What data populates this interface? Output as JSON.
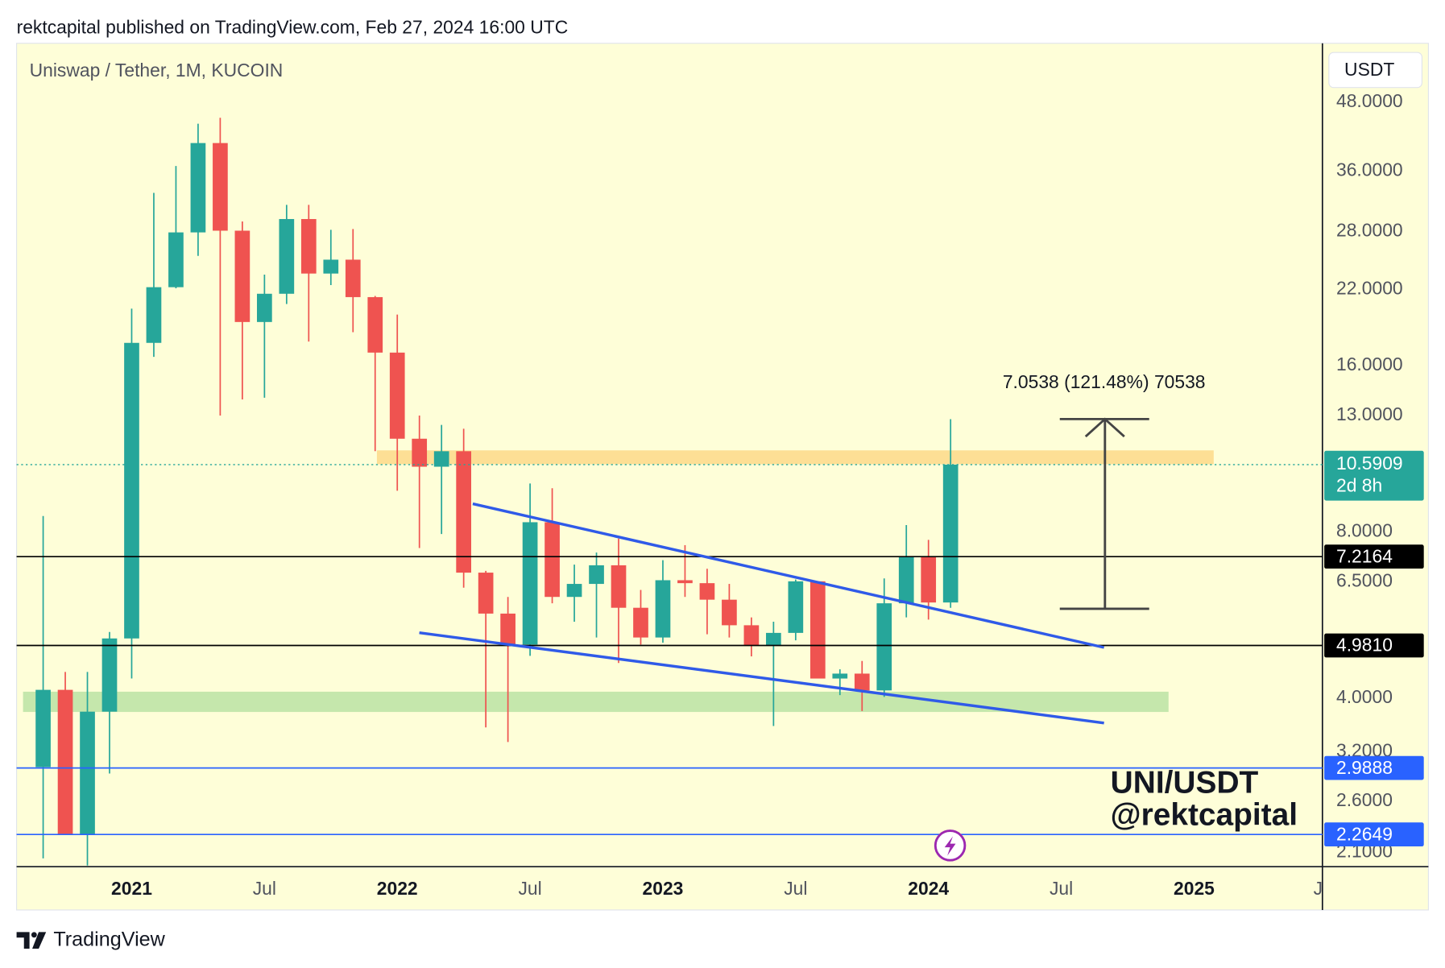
{
  "chart_data": {
    "type": "candlestick",
    "title": "rektcapital published on TradingView.com, Feb 27, 2024 16:00 UTC",
    "subtitle": "Uniswap / Tether, 1M, KUCOIN",
    "currency": "USDT",
    "up_color": "#26a69a",
    "down_color": "#ef5350",
    "log_scale": true,
    "ylim": [
      1.98,
      61.4
    ],
    "xlim": [
      -1.2,
      57.8
    ],
    "open": [
      3.0,
      4.14,
      2.26,
      3.78,
      5.13,
      17.6,
      22.2,
      27.9,
      40.5,
      28.1,
      19.2,
      21.6,
      29.5,
      23.5,
      24.9,
      21.3,
      16.9,
      11.8,
      10.5,
      11.2,
      6.75,
      5.69,
      5.0,
      8.33,
      6.1,
      6.44,
      6.96,
      5.83,
      5.15,
      6.54,
      6.46,
      6.03,
      5.42,
      4.98,
      5.25,
      6.51,
      4.34,
      4.43,
      4.13,
      5.94,
      7.2,
      5.96
    ],
    "high": [
      8.55,
      4.46,
      4.46,
      5.27,
      20.3,
      32.9,
      36.8,
      43.9,
      45.0,
      29.2,
      23.4,
      31.3,
      31.3,
      28.2,
      28.3,
      21.4,
      19.8,
      13.0,
      12.5,
      12.3,
      6.8,
      6.1,
      9.79,
      9.6,
      6.98,
      7.34,
      7.78,
      6.28,
      7.11,
      7.57,
      6.86,
      6.44,
      5.6,
      5.5,
      6.56,
      6.51,
      4.51,
      4.67,
      6.59,
      8.23,
      7.74,
      12.8
    ],
    "low": [
      2.05,
      2.26,
      1.99,
      2.92,
      4.34,
      16.6,
      22.1,
      25.3,
      13.0,
      13.9,
      14.0,
      20.7,
      17.7,
      22.4,
      18.4,
      11.2,
      9.5,
      7.48,
      7.93,
      6.34,
      3.54,
      3.33,
      4.77,
      5.94,
      5.5,
      5.15,
      4.63,
      5.0,
      5.04,
      6.1,
      5.22,
      5.15,
      4.76,
      3.56,
      5.09,
      4.34,
      4.05,
      3.79,
      4.02,
      5.6,
      5.55,
      5.83
    ],
    "close": [
      4.14,
      2.26,
      3.78,
      5.13,
      17.6,
      22.2,
      27.9,
      40.5,
      28.1,
      19.2,
      21.6,
      29.5,
      23.5,
      24.9,
      21.3,
      16.9,
      11.8,
      10.5,
      11.2,
      6.75,
      5.69,
      5.0,
      8.33,
      6.1,
      6.44,
      6.96,
      5.83,
      5.15,
      6.54,
      6.46,
      6.03,
      5.42,
      4.98,
      5.25,
      6.51,
      4.34,
      4.43,
      4.13,
      5.94,
      7.2,
      5.96,
      10.5909
    ],
    "countdown": "2d 8h",
    "yticks": [
      {
        "value": 48,
        "label": "48.0000"
      },
      {
        "value": 36,
        "label": "36.0000"
      },
      {
        "value": 28,
        "label": "28.0000"
      },
      {
        "value": 22,
        "label": "22.0000"
      },
      {
        "value": 16,
        "label": "16.0000"
      },
      {
        "value": 13,
        "label": "13.0000"
      },
      {
        "value": 8,
        "label": "8.0000"
      },
      {
        "value": 6.5,
        "label": "6.5000"
      },
      {
        "value": 4,
        "label": "4.0000"
      },
      {
        "value": 3.2,
        "label": "3.2000"
      },
      {
        "value": 2.6,
        "label": "2.6000"
      },
      {
        "value": 2.1,
        "label": "2.1000"
      }
    ],
    "xticks": [
      {
        "value": 4,
        "label": "2021"
      },
      {
        "value": 10,
        "label": "Jul"
      },
      {
        "value": 16,
        "label": "2022"
      },
      {
        "value": 22,
        "label": "Jul"
      },
      {
        "value": 28,
        "label": "2023"
      },
      {
        "value": 34,
        "label": "Jul"
      },
      {
        "value": 40,
        "label": "2024"
      },
      {
        "value": 46,
        "label": "Jul"
      },
      {
        "value": 52,
        "label": "2025"
      },
      {
        "value": 57.6,
        "label": "J"
      }
    ],
    "price_lines": [
      {
        "value": 7.2164,
        "color": "#000000"
      },
      {
        "value": 4.981,
        "label": "4.9810",
        "color": "#000000"
      },
      {
        "value": 2.9888,
        "color": "#2962ff"
      },
      {
        "value": 2.2649,
        "color": "#2962ff"
      }
    ],
    "measure_label": "7.0538 (121.48%) 70538",
    "watermark": [
      "UNI/USDT",
      "@rektcapital"
    ],
    "footer": "TradingView"
  }
}
